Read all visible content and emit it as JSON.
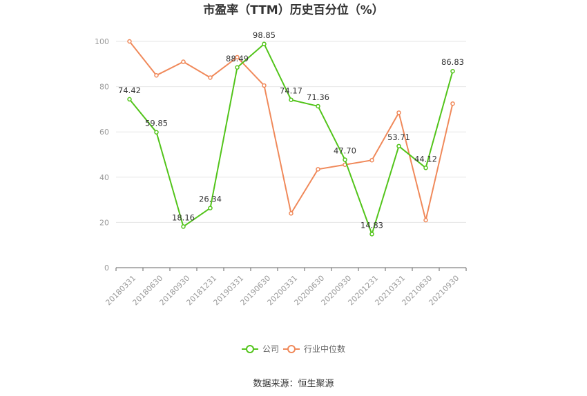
{
  "chart_data": {
    "type": "line",
    "title": "市盈率（TTM）历史百分位（%）",
    "categories": [
      "20180331",
      "20180630",
      "20180930",
      "20181231",
      "20190331",
      "20190630",
      "20200331",
      "20200630",
      "20200930",
      "20201231",
      "20210331",
      "20210630",
      "20210930"
    ],
    "ylim": [
      0,
      100
    ],
    "yticks": [
      "0",
      "20",
      "40",
      "60",
      "80",
      "100"
    ],
    "grid": true,
    "legend_position": "bottom",
    "series": [
      {
        "name": "公司",
        "color": "#52c41a",
        "values": [
          74.42,
          59.85,
          18.16,
          26.34,
          88.49,
          98.85,
          74.17,
          71.36,
          47.7,
          14.83,
          53.71,
          44.12,
          86.83
        ],
        "labels": [
          "74.42",
          "59.85",
          "18.16",
          "26.34",
          "88.49",
          "98.85",
          "74.17",
          "71.36",
          "47.70",
          "14.83",
          "53.71",
          "44.12",
          "86.83"
        ]
      },
      {
        "name": "行业中位数",
        "color": "#f0895a",
        "values": [
          100,
          85,
          91,
          84,
          93,
          80.5,
          24,
          43.5,
          45.5,
          47.5,
          68.5,
          21,
          72.5
        ]
      }
    ]
  },
  "source": "数据来源：恒生聚源"
}
